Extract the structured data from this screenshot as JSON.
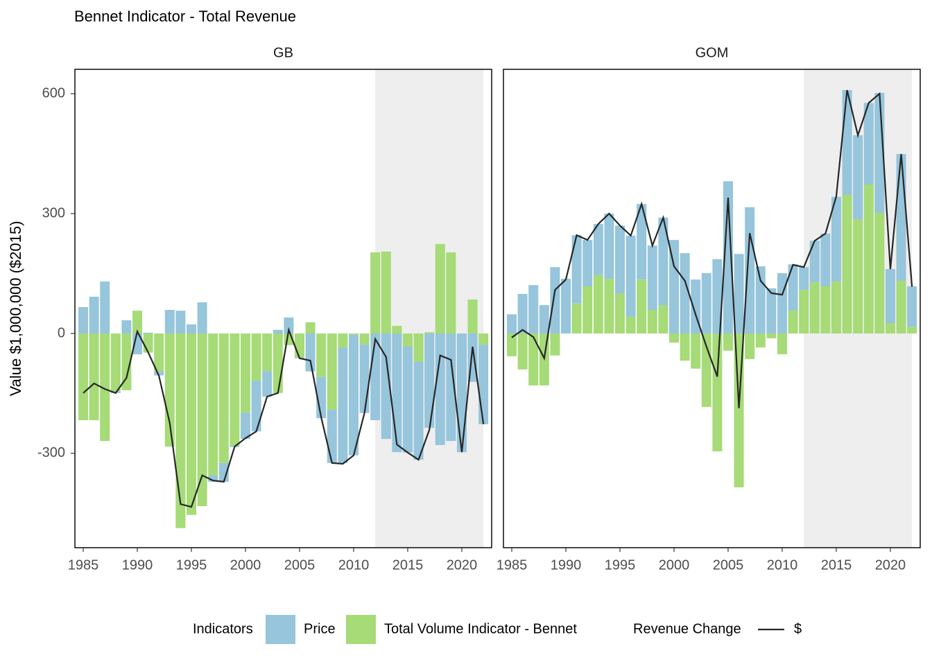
{
  "chart_data": {
    "type": "stacked_bar_line",
    "title": "Bennet Indicator - Total Revenue",
    "y_label": "Value $1,000,000 ($2015)",
    "fill_legend_title": "Indicators",
    "line_legend_title": "Revenue Change",
    "series": [
      {
        "name": "Price",
        "color": "#96c5dc"
      },
      {
        "name": "Total Volume Indicator - Bennet",
        "color": "#a6db77"
      }
    ],
    "line": {
      "name": "$",
      "color": "#262626"
    },
    "shade": [
      2012,
      2022
    ],
    "shade_color": "#eeeeee",
    "xlim": [
      1984.23,
      2022.76
    ],
    "xticks": [
      1985,
      1990,
      1995,
      2000,
      2005,
      2010,
      2015,
      2020
    ],
    "ylim": [
      -536,
      661
    ],
    "yticks": [
      -300,
      0,
      300,
      600
    ],
    "x": [
      1985,
      1986,
      1987,
      1988,
      1989,
      1990,
      1991,
      1992,
      1993,
      1994,
      1995,
      1996,
      1997,
      1998,
      1999,
      2000,
      2001,
      2002,
      2003,
      2004,
      2005,
      2006,
      2007,
      2008,
      2009,
      2010,
      2011,
      2012,
      2013,
      2014,
      2015,
      2016,
      2017,
      2018,
      2019,
      2020,
      2021,
      2022
    ],
    "facets": [
      {
        "title": "GB",
        "series": [
          {
            "values": [
              66,
              92,
              130,
              -4,
              33,
              -52,
              2,
              -10,
              59,
              57,
              23,
              78,
              -16,
              -47,
              -3,
              -66,
              -127,
              -64,
              9,
              40,
              -2,
              -95,
              -103,
              -133,
              -289,
              -302,
              -171,
              -217,
              -264,
              -297,
              -265,
              -245,
              -236,
              -279,
              -269,
              -297,
              -121,
              -199
            ]
          },
          {
            "values": [
              -217,
              -217,
              -269,
              -145,
              -142,
              57,
              -48,
              -95,
              -283,
              -487,
              -454,
              -432,
              -355,
              -324,
              -281,
              -198,
              -118,
              -94,
              -149,
              -29,
              -60,
              28,
              -109,
              -191,
              -35,
              -3,
              -28,
              203,
              205,
              19,
              -33,
              -71,
              3,
              224,
              203,
              0,
              85,
              -28
            ]
          }
        ],
        "line_values": [
          -149,
          -125,
          -139,
          -149,
          -111,
          5,
          -47,
          -106,
          -224,
          -427,
          -434,
          -355,
          -368,
          -371,
          -283,
          -262,
          -245,
          -158,
          -149,
          9,
          -62,
          -68,
          -210,
          -324,
          -326,
          -305,
          -199,
          -14,
          -59,
          -278,
          -298,
          -316,
          -241,
          -55,
          -66,
          -297,
          -33,
          -227
        ]
      },
      {
        "title": "GOM",
        "series": [
          {
            "values": [
              48,
              99,
              121,
              71,
              166,
              137,
              171,
              116,
              128,
              163,
              170,
              203,
              189,
              161,
              219,
              234,
              201,
              135,
              151,
              186,
              381,
              199,
              316,
              168,
              113,
              151,
              116,
              57,
              104,
              132,
              212,
              262,
              210,
              204,
              300,
              135,
              317,
              101
            ]
          },
          {
            "values": [
              -57,
              -90,
              -130,
              -130,
              -55,
              0,
              75,
              118,
              146,
              137,
              100,
              42,
              135,
              59,
              71,
              -23,
              -68,
              -88,
              -184,
              -295,
              -43,
              -385,
              -64,
              -35,
              -12,
              -52,
              57,
              109,
              128,
              118,
              130,
              347,
              286,
              373,
              302,
              26,
              132,
              17
            ]
          }
        ],
        "line_values": [
          -10,
          9,
          -9,
          -62,
          109,
          135,
          246,
          234,
          274,
          300,
          270,
          245,
          324,
          220,
          290,
          168,
          132,
          47,
          -33,
          -108,
          340,
          -187,
          251,
          132,
          101,
          97,
          172,
          166,
          232,
          250,
          343,
          609,
          496,
          577,
          600,
          161,
          449,
          117
        ]
      }
    ]
  }
}
